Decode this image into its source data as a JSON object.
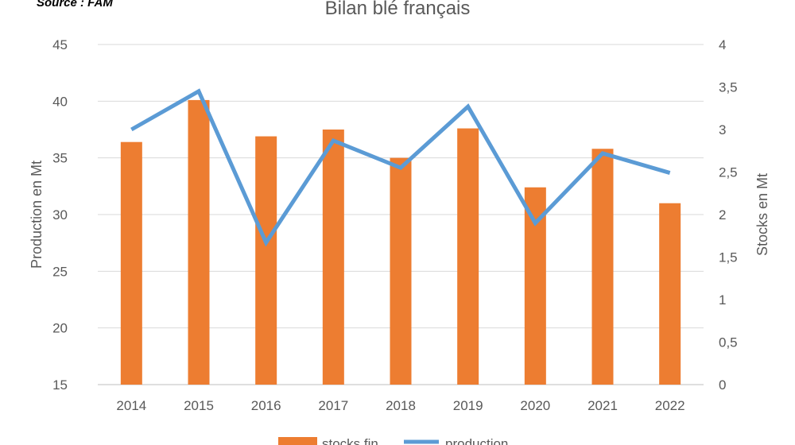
{
  "source_note": "Source : FAM",
  "chart_data": {
    "type": "bar",
    "title": "Bilan blé français",
    "categories": [
      "2014",
      "2015",
      "2016",
      "2017",
      "2018",
      "2019",
      "2020",
      "2021",
      "2022"
    ],
    "series": [
      {
        "name": "stocks fin",
        "type": "bar",
        "axis": "left",
        "color": "#ED7D31",
        "values": [
          36.4,
          40.1,
          36.9,
          37.5,
          35.0,
          37.6,
          32.4,
          35.8,
          31.0
        ]
      },
      {
        "name": "production",
        "type": "line",
        "axis": "right",
        "color": "#5B9BD5",
        "values": [
          3.0,
          3.45,
          1.67,
          2.87,
          2.55,
          3.27,
          1.9,
          2.72,
          2.49
        ]
      }
    ],
    "ylabel": "Production en Mt",
    "ylim": [
      15,
      45
    ],
    "yticks": [
      "15",
      "20",
      "25",
      "30",
      "35",
      "40",
      "45"
    ],
    "y2label": "Stocks en Mt",
    "y2lim": [
      0,
      4
    ],
    "y2ticks": [
      "0",
      "0,5",
      "1",
      "1,5",
      "2",
      "2,5",
      "3",
      "3,5",
      "4"
    ],
    "grid": true,
    "legend_position": "bottom"
  }
}
